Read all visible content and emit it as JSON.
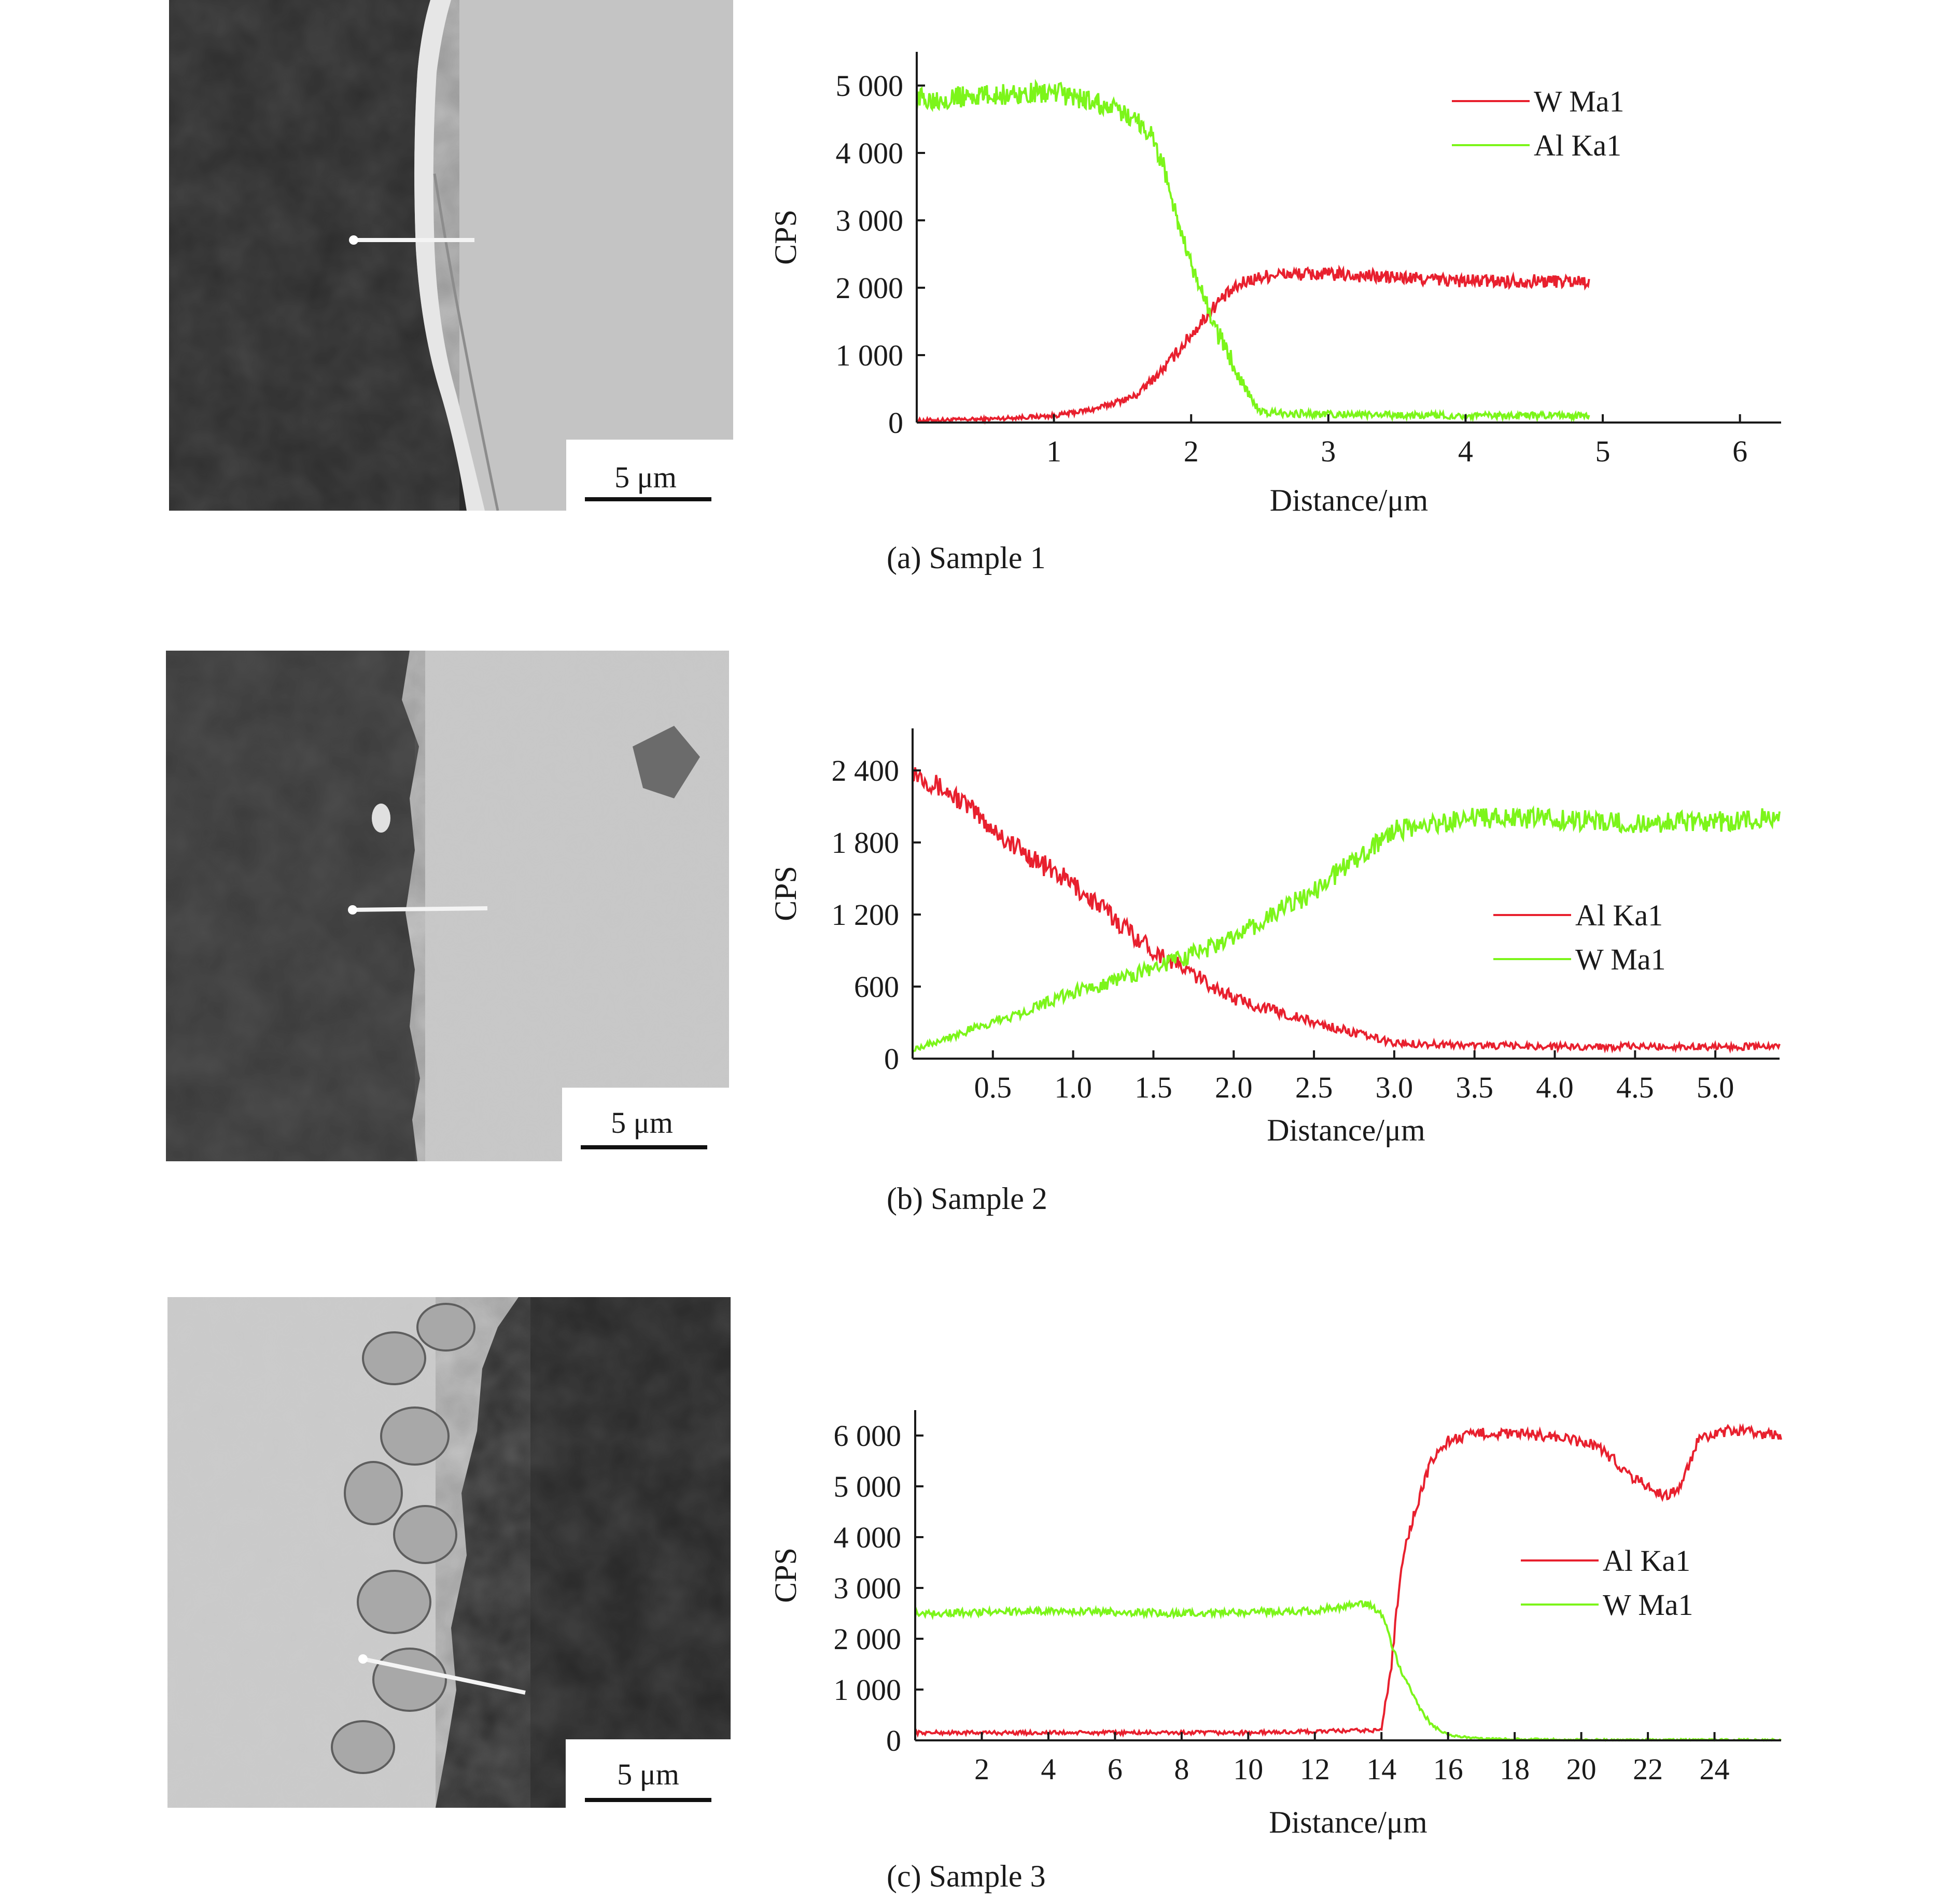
{
  "colors": {
    "red": "#e8202e",
    "green": "#7cf51a",
    "axis": "#1a1a1a",
    "photo_dark": "#2c2c2c",
    "photo_light": "#c3c3c3"
  },
  "scale_bar_label": "5 μm",
  "chart_data": [
    {
      "type": "line",
      "caption": "(a) Sample 1",
      "xlabel": "Distance/μm",
      "ylabel": "CPS",
      "xlim": [
        0,
        6.3
      ],
      "ylim": [
        0,
        5500
      ],
      "x_ticks": [
        1,
        2,
        3,
        4,
        5,
        6
      ],
      "x_tick_labels": [
        "1",
        "2",
        "3",
        "4",
        "5",
        "6"
      ],
      "y_ticks": [
        0,
        1000,
        2000,
        3000,
        4000,
        5000
      ],
      "y_tick_labels": [
        "0",
        "1 000",
        "2 000",
        "3 000",
        "4 000",
        "5 000"
      ],
      "legend_position": "top-right",
      "series": [
        {
          "name": "W Ma1",
          "color": "#e8202e",
          "x": [
            0,
            0.5,
            1.0,
            1.3,
            1.6,
            1.8,
            2.0,
            2.2,
            2.4,
            2.6,
            3.0,
            3.5,
            4.0,
            4.5,
            4.9
          ],
          "y": [
            30,
            50,
            100,
            200,
            400,
            800,
            1300,
            1800,
            2100,
            2200,
            2200,
            2150,
            2100,
            2100,
            2100
          ],
          "noise": 100
        },
        {
          "name": "Al Ka1",
          "color": "#7cf51a",
          "x": [
            0,
            0.5,
            1.0,
            1.3,
            1.6,
            1.7,
            1.8,
            1.9,
            2.0,
            2.2,
            2.4,
            2.5,
            3.0,
            4.0,
            4.9
          ],
          "y": [
            4800,
            4850,
            4900,
            4750,
            4500,
            4300,
            3800,
            3000,
            2300,
            1300,
            500,
            150,
            120,
            100,
            100
          ],
          "noise": 160
        }
      ]
    },
    {
      "type": "line",
      "caption": "(b) Sample 2",
      "xlabel": "Distance/μm",
      "ylabel": "CPS",
      "xlim": [
        0,
        5.4
      ],
      "ylim": [
        0,
        2750
      ],
      "x_ticks": [
        0.5,
        1.0,
        1.5,
        2.0,
        2.5,
        3.0,
        3.5,
        4.0,
        4.5,
        5.0
      ],
      "x_tick_labels": [
        "0.5",
        "1.0",
        "1.5",
        "2.0",
        "2.5",
        "3.0",
        "3.5",
        "4.0",
        "4.5",
        "5.0"
      ],
      "y_ticks": [
        0,
        600,
        1200,
        1800,
        2400
      ],
      "y_tick_labels": [
        "0",
        "600",
        "1 200",
        "1 800",
        "2 400"
      ],
      "legend_position": "middle-right",
      "series": [
        {
          "name": "Al Ka1",
          "color": "#e8202e",
          "x": [
            0,
            0.3,
            0.6,
            1.0,
            1.5,
            2.0,
            2.5,
            3.0,
            3.5,
            4.0,
            4.5,
            5.4
          ],
          "y": [
            2400,
            2150,
            1800,
            1450,
            900,
            500,
            300,
            130,
            110,
            100,
            100,
            100
          ],
          "noise": 90
        },
        {
          "name": "W Ma1",
          "color": "#7cf51a",
          "x": [
            0,
            0.5,
            1.0,
            1.5,
            2.0,
            2.5,
            2.8,
            3.0,
            3.5,
            4.0,
            4.5,
            5.4
          ],
          "y": [
            80,
            300,
            550,
            750,
            1000,
            1400,
            1700,
            1900,
            2000,
            2000,
            1950,
            2000
          ],
          "noise": 90
        }
      ]
    },
    {
      "type": "line",
      "caption": "(c) Sample 3",
      "xlabel": "Distance/μm",
      "ylabel": "CPS",
      "xlim": [
        0,
        26
      ],
      "ylim": [
        0,
        6500
      ],
      "x_ticks": [
        2,
        4,
        6,
        8,
        10,
        12,
        14,
        16,
        18,
        20,
        22,
        24
      ],
      "x_tick_labels": [
        "2",
        "4",
        "6",
        "8",
        "10",
        "12",
        "14",
        "16",
        "18",
        "20",
        "22",
        "24"
      ],
      "y_ticks": [
        0,
        1000,
        2000,
        3000,
        4000,
        5000,
        6000
      ],
      "y_tick_labels": [
        "0",
        "1 000",
        "2 000",
        "3 000",
        "4 000",
        "5 000",
        "6 000"
      ],
      "legend_position": "middle-right",
      "series": [
        {
          "name": "Al Ka1",
          "color": "#e8202e",
          "x": [
            0,
            5,
            10,
            14,
            14.3,
            14.6,
            15.0,
            15.5,
            16.0,
            17.0,
            19.0,
            20.5,
            21.5,
            22.5,
            23.0,
            23.5,
            24.5,
            26
          ],
          "y": [
            150,
            150,
            150,
            200,
            1500,
            3500,
            4500,
            5500,
            5900,
            6050,
            6000,
            5800,
            5200,
            4800,
            5000,
            5900,
            6100,
            6000
          ],
          "noise": 110
        },
        {
          "name": "W Ma1",
          "color": "#7cf51a",
          "x": [
            0,
            4,
            8,
            12,
            13.5,
            14.0,
            14.5,
            15.0,
            15.5,
            16.0,
            17.0,
            20.0,
            26.0
          ],
          "y": [
            2500,
            2550,
            2500,
            2550,
            2700,
            2500,
            1500,
            800,
            300,
            100,
            30,
            10,
            10
          ],
          "noise": 70
        }
      ]
    }
  ]
}
